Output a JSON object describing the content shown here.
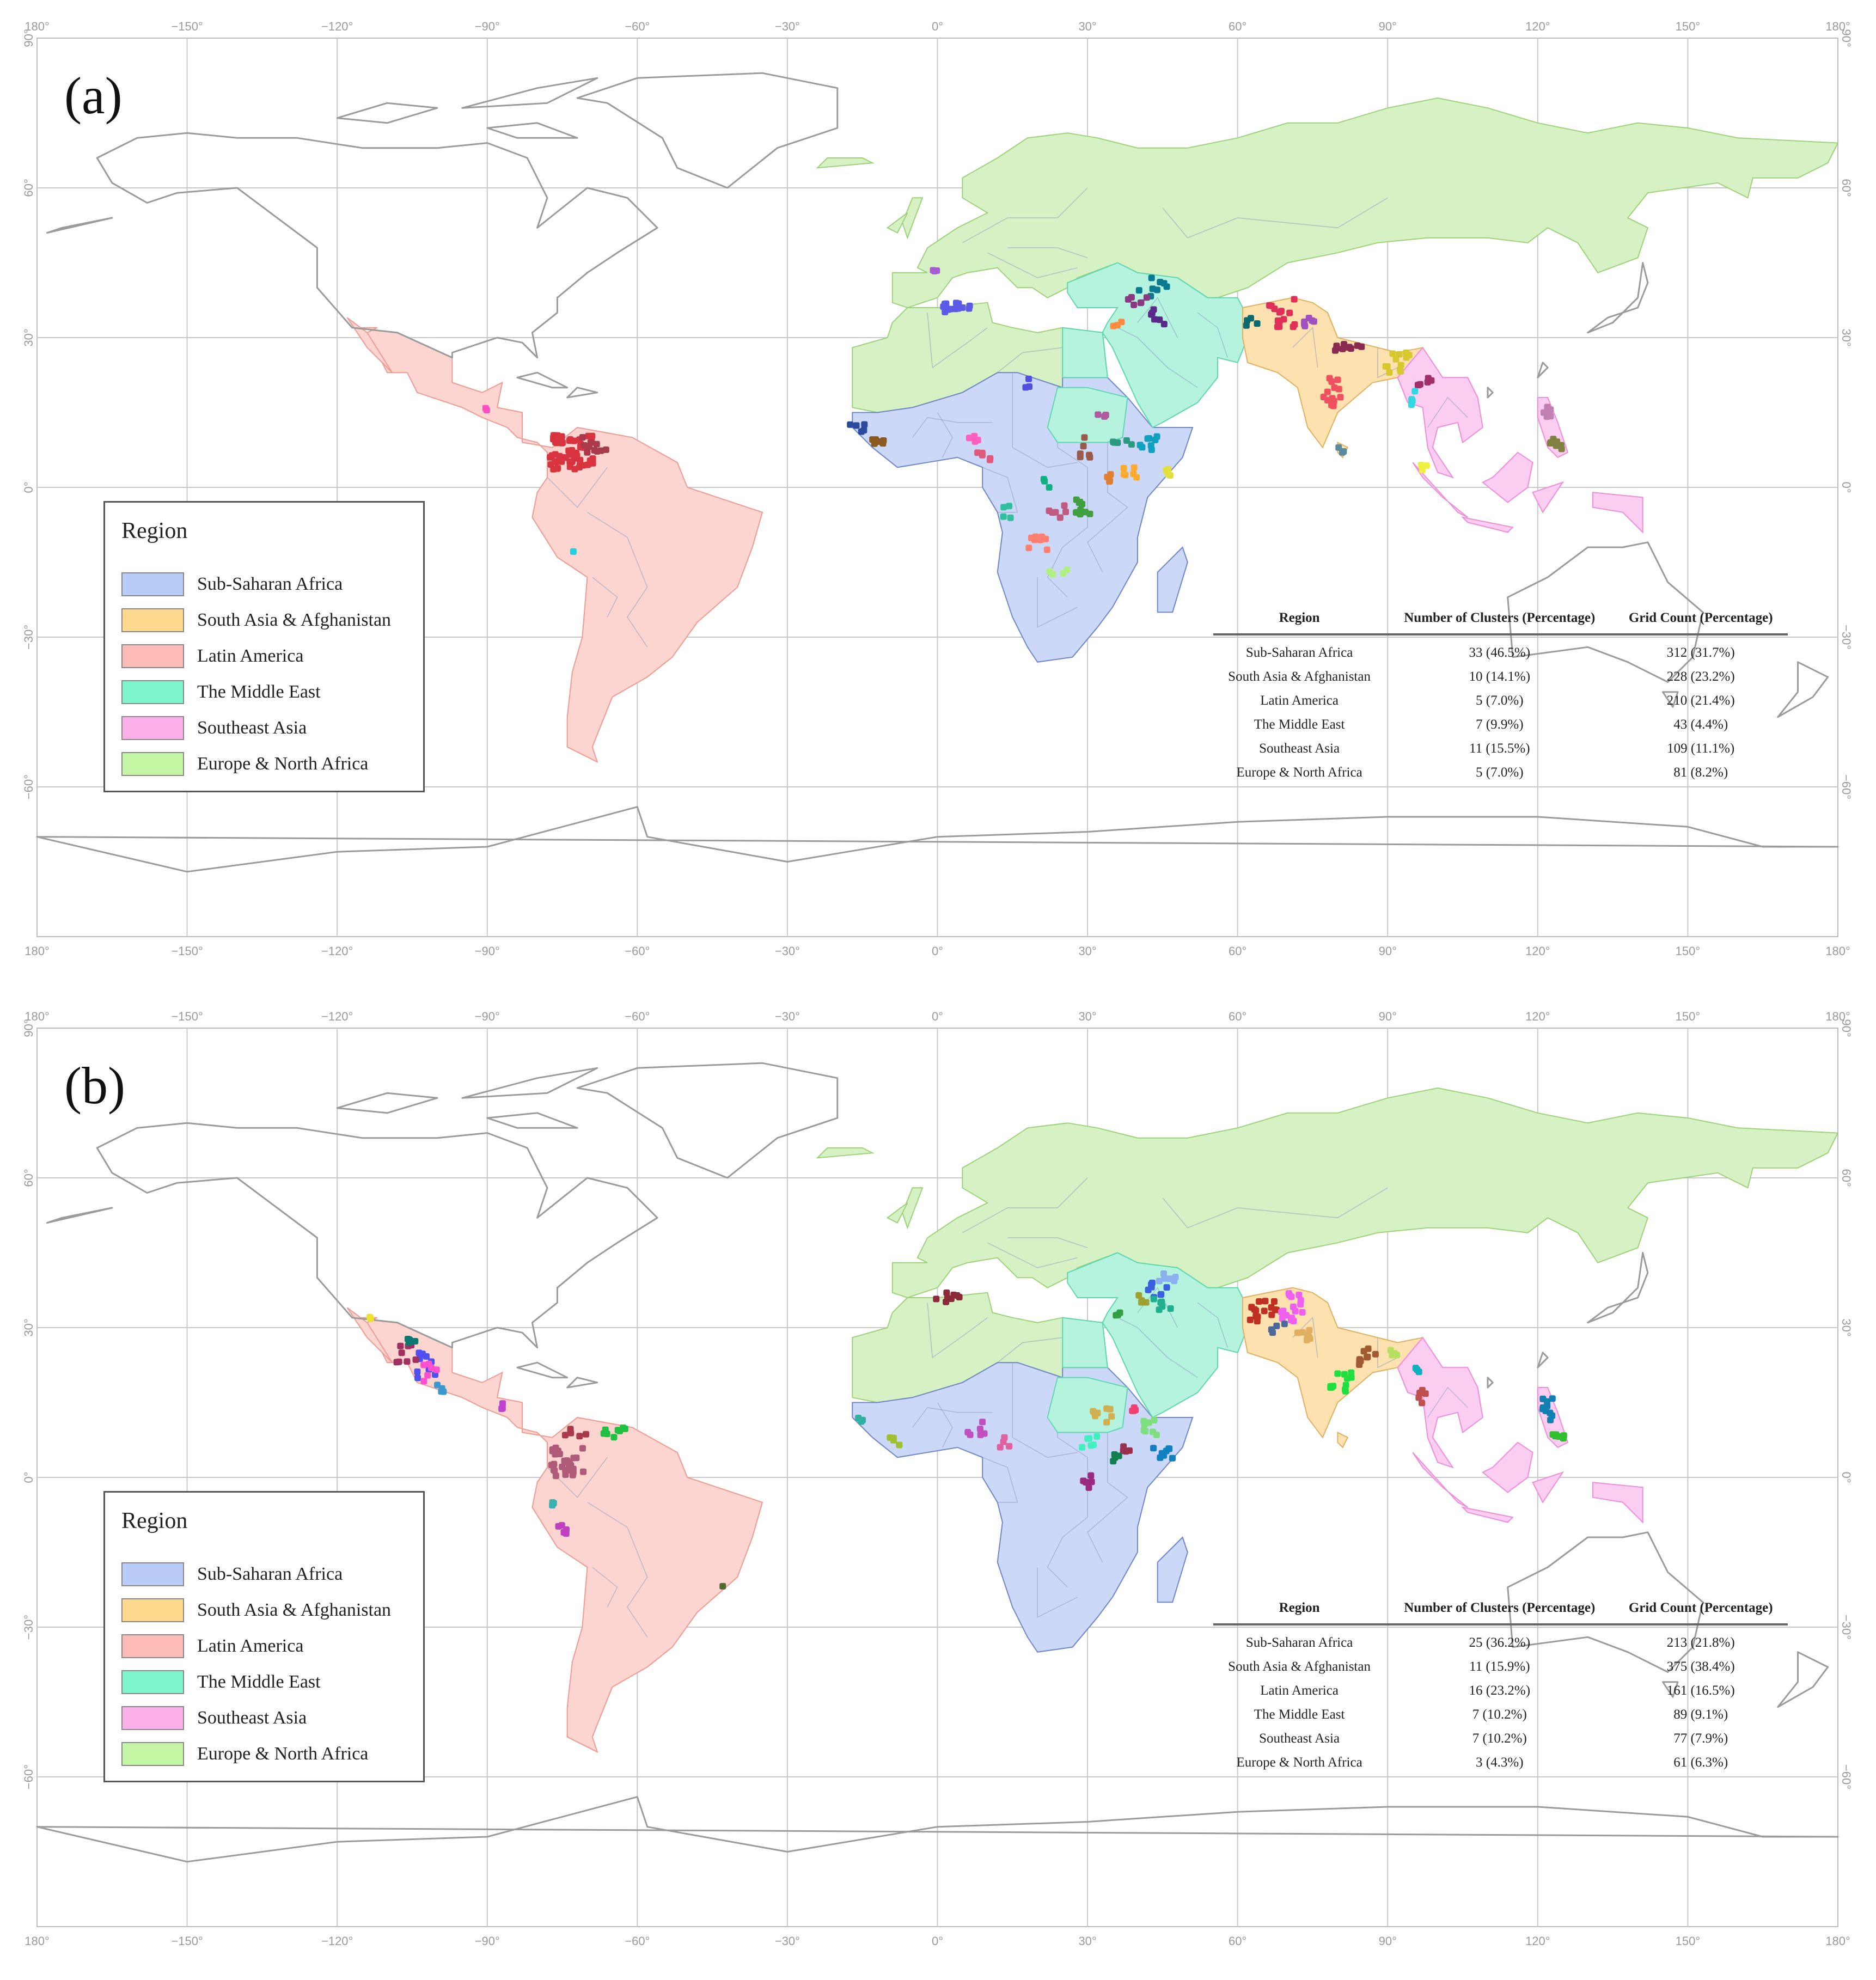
{
  "tick_labels": {
    "longitude": [
      "180°",
      "−150°",
      "−120°",
      "−90°",
      "−60°",
      "−30°",
      "0°",
      "30°",
      "60°",
      "90°",
      "120°",
      "150°",
      "180°"
    ],
    "latitude": [
      "90°",
      "60°",
      "30°",
      "0°",
      "−30°",
      "−60°"
    ]
  },
  "legend": {
    "title": "Region",
    "items": [
      {
        "label": "Sub-Saharan Africa",
        "color": "#b9cbf7"
      },
      {
        "label": "South Asia & Afghanistan",
        "color": "#fcd98c"
      },
      {
        "label": "Latin America",
        "color": "#fbbcb6"
      },
      {
        "label": "The Middle East",
        "color": "#7ef5cc"
      },
      {
        "label": "Southeast Asia",
        "color": "#fbb0ea"
      },
      {
        "label": "Europe & North Africa",
        "color": "#c4f5a3"
      }
    ]
  },
  "table_headers": {
    "region": "Region",
    "clusters": "Number of Clusters (Percentage)",
    "grid": "Grid Count (Percentage)"
  },
  "panels": [
    {
      "label": "(a)",
      "rows": [
        {
          "region": "Sub-Saharan Africa",
          "clusters": "33 (46.5%)",
          "grid": "312 (31.7%)"
        },
        {
          "region": "South Asia & Afghanistan",
          "clusters": "10 (14.1%)",
          "grid": "228 (23.2%)"
        },
        {
          "region": "Latin America",
          "clusters": "5 (7.0%)",
          "grid": "210 (21.4%)"
        },
        {
          "region": "The Middle East",
          "clusters": "7 (9.9%)",
          "grid": "43 (4.4%)"
        },
        {
          "region": "Southeast Asia",
          "clusters": "11 (15.5%)",
          "grid": "109 (11.1%)"
        },
        {
          "region": "Europe & North Africa",
          "clusters": "5 (7.0%)",
          "grid": "81 (8.2%)"
        }
      ]
    },
    {
      "label": "(b)",
      "rows": [
        {
          "region": "Sub-Saharan Africa",
          "clusters": "25 (36.2%)",
          "grid": "213 (21.8%)"
        },
        {
          "region": "South Asia & Afghanistan",
          "clusters": "11 (15.9%)",
          "grid": "375 (38.4%)"
        },
        {
          "region": "Latin America",
          "clusters": "16 (23.2%)",
          "grid": "161 (16.5%)"
        },
        {
          "region": "The Middle East",
          "clusters": "7 (10.2%)",
          "grid": "89 (9.1%)"
        },
        {
          "region": "Southeast Asia",
          "clusters": "7 (10.2%)",
          "grid": "77 (7.9%)"
        },
        {
          "region": "Europe & North Africa",
          "clusters": "3 (4.3%)",
          "grid": "61 (6.3%)"
        }
      ]
    }
  ],
  "clusters": {
    "a": [
      {
        "lon": -73,
        "lat": 7,
        "color": "#d8343f",
        "n": 60,
        "spread": [
          4.5,
          3.5
        ]
      },
      {
        "lon": -68,
        "lat": 9,
        "color": "#a83a4a",
        "n": 10,
        "spread": [
          3,
          2
        ]
      },
      {
        "lon": -90,
        "lat": 15,
        "color": "#ff4fbf",
        "n": 2,
        "spread": [
          1,
          1
        ]
      },
      {
        "lon": -73,
        "lat": -13,
        "color": "#1ed0e0",
        "n": 1,
        "spread": [
          0.5,
          0.5
        ]
      },
      {
        "lon": 4,
        "lat": 36,
        "color": "#5b5be8",
        "n": 14,
        "spread": [
          3,
          1
        ]
      },
      {
        "lon": -1,
        "lat": 43,
        "color": "#a65bd0",
        "n": 3,
        "spread": [
          1.5,
          0.5
        ]
      },
      {
        "lon": 43,
        "lat": 40,
        "color": "#0a7a90",
        "n": 8,
        "spread": [
          3,
          2
        ]
      },
      {
        "lon": 40,
        "lat": 38,
        "color": "#8a3a80",
        "n": 6,
        "spread": [
          2,
          1.5
        ]
      },
      {
        "lon": 44,
        "lat": 34,
        "color": "#5a2a8a",
        "n": 6,
        "spread": [
          2,
          2
        ]
      },
      {
        "lon": 36,
        "lat": 33,
        "color": "#ff8a40",
        "n": 3,
        "spread": [
          1,
          1
        ]
      },
      {
        "lon": 69,
        "lat": 35,
        "color": "#e0305a",
        "n": 14,
        "spread": [
          3,
          3
        ]
      },
      {
        "lon": 63,
        "lat": 33,
        "color": "#0a6a70",
        "n": 4,
        "spread": [
          1.5,
          1
        ]
      },
      {
        "lon": 74,
        "lat": 33,
        "color": "#a050c0",
        "n": 6,
        "spread": [
          1.5,
          1
        ]
      },
      {
        "lon": 82,
        "lat": 28,
        "color": "#8a2a50",
        "n": 10,
        "spread": [
          3,
          0.8
        ]
      },
      {
        "lon": 79,
        "lat": 19,
        "color": "#f05060",
        "n": 14,
        "spread": [
          2,
          3
        ]
      },
      {
        "lon": 81,
        "lat": 8,
        "color": "#5a8aa0",
        "n": 4,
        "spread": [
          0.8,
          1
        ]
      },
      {
        "lon": 92,
        "lat": 25,
        "color": "#d8c830",
        "n": 12,
        "spread": [
          2.5,
          2
        ]
      },
      {
        "lon": 98,
        "lat": 21,
        "color": "#a0306a",
        "n": 6,
        "spread": [
          2,
          1
        ]
      },
      {
        "lon": 96,
        "lat": 18,
        "color": "#30d8e0",
        "n": 6,
        "spread": [
          1.5,
          2
        ]
      },
      {
        "lon": 97,
        "lat": 4,
        "color": "#f0f040",
        "n": 4,
        "spread": [
          1,
          1
        ]
      },
      {
        "lon": 122,
        "lat": 15,
        "color": "#c080b0",
        "n": 6,
        "spread": [
          1,
          1.5
        ]
      },
      {
        "lon": 124,
        "lat": 9,
        "color": "#808040",
        "n": 8,
        "spread": [
          1.5,
          1.5
        ]
      },
      {
        "lon": -16,
        "lat": 12,
        "color": "#2a4aa0",
        "n": 5,
        "spread": [
          1.5,
          1
        ]
      },
      {
        "lon": -12,
        "lat": 9,
        "color": "#8a5a20",
        "n": 6,
        "spread": [
          1.5,
          1
        ]
      },
      {
        "lon": 8,
        "lat": 10,
        "color": "#ff5fbf",
        "n": 4,
        "spread": [
          2,
          1
        ]
      },
      {
        "lon": 10,
        "lat": 6,
        "color": "#e05a7a",
        "n": 5,
        "spread": [
          2,
          1
        ]
      },
      {
        "lon": 18,
        "lat": 21,
        "color": "#5050e0",
        "n": 3,
        "spread": [
          0.5,
          1
        ]
      },
      {
        "lon": 30,
        "lat": 8,
        "color": "#9a5a4a",
        "n": 6,
        "spread": [
          1.5,
          2
        ]
      },
      {
        "lon": 37,
        "lat": 9,
        "color": "#2a9a80",
        "n": 5,
        "spread": [
          2,
          1
        ]
      },
      {
        "lon": 42,
        "lat": 9,
        "color": "#10a0c0",
        "n": 8,
        "spread": [
          2,
          1.5
        ]
      },
      {
        "lon": 38,
        "lat": 3,
        "color": "#ffaa30",
        "n": 6,
        "spread": [
          2,
          1
        ]
      },
      {
        "lon": 46,
        "lat": 3,
        "color": "#e0e040",
        "n": 4,
        "spread": [
          1,
          1
        ]
      },
      {
        "lon": 33,
        "lat": 14,
        "color": "#b05aa0",
        "n": 4,
        "spread": [
          1,
          1
        ]
      },
      {
        "lon": 29,
        "lat": -3,
        "color": "#40a040",
        "n": 12,
        "spread": [
          1.5,
          3
        ]
      },
      {
        "lon": 24,
        "lat": -5,
        "color": "#c05a80",
        "n": 6,
        "spread": [
          2,
          1.5
        ]
      },
      {
        "lon": 20,
        "lat": -11,
        "color": "#ff8070",
        "n": 10,
        "spread": [
          2,
          1.5
        ]
      },
      {
        "lon": 24,
        "lat": -17,
        "color": "#b0f080",
        "n": 4,
        "spread": [
          2,
          0.5
        ]
      },
      {
        "lon": 14,
        "lat": -5,
        "color": "#30c0a0",
        "n": 4,
        "spread": [
          1,
          1.5
        ]
      },
      {
        "lon": 34,
        "lat": 2,
        "color": "#e08030",
        "n": 4,
        "spread": [
          1,
          1
        ]
      },
      {
        "lon": 22,
        "lat": 1,
        "color": "#10b080",
        "n": 3,
        "spread": [
          1,
          1
        ]
      }
    ],
    "b": [
      {
        "lon": -74,
        "lat": 3,
        "color": "#b05a7a",
        "n": 30,
        "spread": [
          3.5,
          3
        ]
      },
      {
        "lon": -73,
        "lat": 9,
        "color": "#a83a4a",
        "n": 6,
        "spread": [
          3,
          1
        ]
      },
      {
        "lon": -65,
        "lat": 9,
        "color": "#20c040",
        "n": 8,
        "spread": [
          3,
          1
        ]
      },
      {
        "lon": -102,
        "lat": 22,
        "color": "#5050f0",
        "n": 10,
        "spread": [
          2,
          3
        ]
      },
      {
        "lon": -106,
        "lat": 25,
        "color": "#a03060",
        "n": 8,
        "spread": [
          2.5,
          2
        ]
      },
      {
        "lon": -105,
        "lat": 28,
        "color": "#0a7a70",
        "n": 4,
        "spread": [
          1,
          1
        ]
      },
      {
        "lon": -99,
        "lat": 18,
        "color": "#3a9ad0",
        "n": 4,
        "spread": [
          1,
          1
        ]
      },
      {
        "lon": -101,
        "lat": 21,
        "color": "#ff50d0",
        "n": 6,
        "spread": [
          2,
          2
        ]
      },
      {
        "lon": -113,
        "lat": 32,
        "color": "#f0e030",
        "n": 2,
        "spread": [
          0.5,
          0.5
        ]
      },
      {
        "lon": -87,
        "lat": 14,
        "color": "#c040d0",
        "n": 3,
        "spread": [
          1,
          1
        ]
      },
      {
        "lon": -75,
        "lat": -11,
        "color": "#c040c0",
        "n": 5,
        "spread": [
          1,
          1.5
        ]
      },
      {
        "lon": -77,
        "lat": -6,
        "color": "#3ab0b0",
        "n": 3,
        "spread": [
          0.5,
          1
        ]
      },
      {
        "lon": -43,
        "lat": -22,
        "color": "#506a30",
        "n": 1,
        "spread": [
          0.3,
          0.3
        ]
      },
      {
        "lon": 2,
        "lat": 36,
        "color": "#8a2a3a",
        "n": 8,
        "spread": [
          2.5,
          1
        ]
      },
      {
        "lon": 44,
        "lat": 38,
        "color": "#3a60e0",
        "n": 8,
        "spread": [
          2,
          2
        ]
      },
      {
        "lon": 46,
        "lat": 40,
        "color": "#8ab0f0",
        "n": 6,
        "spread": [
          2,
          1
        ]
      },
      {
        "lon": 45,
        "lat": 35,
        "color": "#20b090",
        "n": 6,
        "spread": [
          2,
          1.5
        ]
      },
      {
        "lon": 41,
        "lat": 36,
        "color": "#a0a030",
        "n": 4,
        "spread": [
          1,
          1
        ]
      },
      {
        "lon": 36,
        "lat": 33,
        "color": "#30a040",
        "n": 3,
        "spread": [
          1,
          1
        ]
      },
      {
        "lon": 65,
        "lat": 33,
        "color": "#c03020",
        "n": 16,
        "spread": [
          3,
          2.5
        ]
      },
      {
        "lon": 71,
        "lat": 34,
        "color": "#f060f0",
        "n": 16,
        "spread": [
          2.5,
          3
        ]
      },
      {
        "lon": 74,
        "lat": 29,
        "color": "#e0b060",
        "n": 8,
        "spread": [
          2,
          1.5
        ]
      },
      {
        "lon": 68,
        "lat": 30,
        "color": "#4a6a9a",
        "n": 4,
        "spread": [
          1.5,
          1
        ]
      },
      {
        "lon": 81,
        "lat": 19,
        "color": "#20e040",
        "n": 12,
        "spread": [
          2.5,
          2
        ]
      },
      {
        "lon": 86,
        "lat": 24,
        "color": "#a05a30",
        "n": 10,
        "spread": [
          2,
          2
        ]
      },
      {
        "lon": 91,
        "lat": 25,
        "color": "#b8e060",
        "n": 4,
        "spread": [
          1.5,
          1
        ]
      },
      {
        "lon": 97,
        "lat": 16,
        "color": "#c05050",
        "n": 5,
        "spread": [
          1,
          2
        ]
      },
      {
        "lon": 96,
        "lat": 22,
        "color": "#10b0c0",
        "n": 3,
        "spread": [
          0.5,
          1
        ]
      },
      {
        "lon": 122,
        "lat": 14,
        "color": "#1080b0",
        "n": 10,
        "spread": [
          1,
          3
        ]
      },
      {
        "lon": 124,
        "lat": 8,
        "color": "#30c030",
        "n": 6,
        "spread": [
          1.5,
          1
        ]
      },
      {
        "lon": -15,
        "lat": 12,
        "color": "#30b0a0",
        "n": 3,
        "spread": [
          1,
          1
        ]
      },
      {
        "lon": -8,
        "lat": 7,
        "color": "#a0c030",
        "n": 4,
        "spread": [
          1.5,
          1
        ]
      },
      {
        "lon": 8,
        "lat": 10,
        "color": "#c050c0",
        "n": 6,
        "spread": [
          2,
          1.5
        ]
      },
      {
        "lon": 14,
        "lat": 7,
        "color": "#e060a0",
        "n": 4,
        "spread": [
          1.5,
          1
        ]
      },
      {
        "lon": 33,
        "lat": 13,
        "color": "#d0b050",
        "n": 8,
        "spread": [
          2,
          2
        ]
      },
      {
        "lon": 30,
        "lat": 7,
        "color": "#40f0c0",
        "n": 6,
        "spread": [
          2,
          1.5
        ]
      },
      {
        "lon": 42,
        "lat": 10,
        "color": "#80e080",
        "n": 8,
        "spread": [
          2,
          1.5
        ]
      },
      {
        "lon": 45,
        "lat": 5,
        "color": "#1080c0",
        "n": 8,
        "spread": [
          2,
          1.5
        ]
      },
      {
        "lon": 40,
        "lat": 14,
        "color": "#f04070",
        "n": 4,
        "spread": [
          1.5,
          1
        ]
      },
      {
        "lon": 38,
        "lat": 6,
        "color": "#9a3050",
        "n": 4,
        "spread": [
          1,
          1
        ]
      },
      {
        "lon": 30,
        "lat": -1,
        "color": "#9a2a80",
        "n": 6,
        "spread": [
          1,
          1.5
        ]
      },
      {
        "lon": 36,
        "lat": 4,
        "color": "#108050",
        "n": 4,
        "spread": [
          1,
          1
        ]
      }
    ]
  }
}
